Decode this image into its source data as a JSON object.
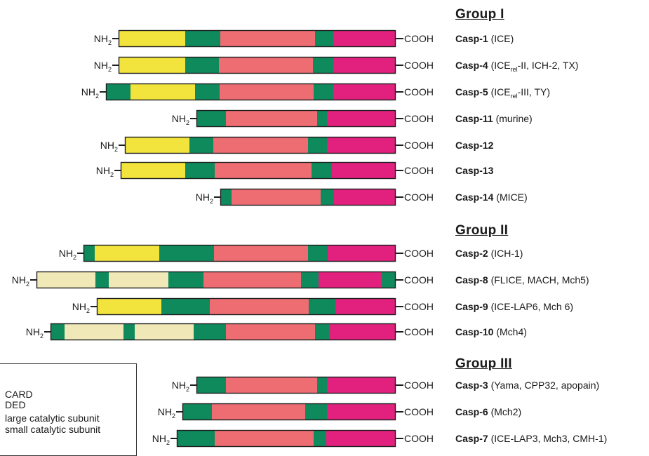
{
  "colors": {
    "card": "#0e8a5c",
    "ded": "#f0e8b6",
    "large": "#ee6d72",
    "small": "#e2207e",
    "prodomain": "#f2e43c"
  },
  "groups": [
    {
      "title": "Group I",
      "rows": [
        {
          "name": "Casp-1",
          "alias": " (ICE)",
          "segments": [
            [
              "prodomain",
              0,
              95
            ],
            [
              "card",
              95,
              145
            ],
            [
              "large",
              145,
              280
            ],
            [
              "card",
              280,
              306
            ],
            [
              "small",
              306,
              395
            ]
          ]
        },
        {
          "name": "Casp-4",
          "alias": " (ICErel-II, ICH-2, TX)",
          "segments": [
            [
              "prodomain",
              0,
              95
            ],
            [
              "card",
              95,
              143
            ],
            [
              "large",
              143,
              277
            ],
            [
              "card",
              277,
              306
            ],
            [
              "small",
              306,
              395
            ]
          ]
        },
        {
          "name": "Casp-5",
          "alias": " (ICErel-III, TY)",
          "segments": [
            [
              "card",
              0,
              35
            ],
            [
              "prodomain",
              35,
              127
            ],
            [
              "card",
              127,
              162
            ],
            [
              "large",
              162,
              296
            ],
            [
              "card",
              296,
              324
            ],
            [
              "small",
              324,
              413
            ]
          ]
        },
        {
          "name": "Casp-11",
          "alias": " (murine)",
          "segments": [
            [
              "card",
              0,
              42
            ],
            [
              "large",
              42,
              172
            ],
            [
              "card",
              172,
              186
            ],
            [
              "small",
              186,
              284
            ]
          ]
        },
        {
          "name": "Casp-12",
          "alias": "",
          "segments": [
            [
              "prodomain",
              0,
              92
            ],
            [
              "card",
              92,
              126
            ],
            [
              "large",
              126,
              261
            ],
            [
              "card",
              261,
              288
            ],
            [
              "small",
              288,
              386
            ]
          ]
        },
        {
          "name": "Casp-13",
          "alias": "",
          "segments": [
            [
              "prodomain",
              0,
              92
            ],
            [
              "card",
              92,
              134
            ],
            [
              "large",
              134,
              272
            ],
            [
              "card",
              272,
              301
            ],
            [
              "small",
              301,
              392
            ]
          ]
        },
        {
          "name": "Casp-14",
          "alias": " (MICE)",
          "segments": [
            [
              "card",
              0,
              16
            ],
            [
              "large",
              16,
              143
            ],
            [
              "card",
              143,
              162
            ],
            [
              "small",
              162,
              250
            ]
          ]
        }
      ]
    },
    {
      "title": "Group II",
      "rows": [
        {
          "name": "Casp-2",
          "alias": " (ICH-1)",
          "segments": [
            [
              "card",
              0,
              16
            ],
            [
              "prodomain",
              16,
              108
            ],
            [
              "card",
              108,
              186
            ],
            [
              "large",
              186,
              320
            ],
            [
              "card",
              320,
              348
            ],
            [
              "small",
              348,
              445
            ]
          ]
        },
        {
          "name": "Casp-8",
          "alias": " (FLICE, MACH, Mch5)",
          "segments": [
            [
              "ded",
              0,
              84
            ],
            [
              "card",
              84,
              103
            ],
            [
              "ded",
              103,
              188
            ],
            [
              "card",
              188,
              238
            ],
            [
              "large",
              238,
              377
            ],
            [
              "card",
              377,
              402
            ],
            [
              "small",
              402,
              492
            ],
            [
              "card",
              492,
              512
            ]
          ]
        },
        {
          "name": "Casp-9",
          "alias": " (ICE-LAP6, Mch 6)",
          "segments": [
            [
              "prodomain",
              0,
              92
            ],
            [
              "card",
              92,
              161
            ],
            [
              "large",
              161,
              302
            ],
            [
              "card",
              302,
              340
            ],
            [
              "small",
              340,
              426
            ]
          ]
        },
        {
          "name": "Casp-10",
          "alias": " (Mch4)",
          "segments": [
            [
              "card",
              0,
              20
            ],
            [
              "ded",
              20,
              104
            ],
            [
              "card",
              104,
              120
            ],
            [
              "ded",
              120,
              204
            ],
            [
              "card",
              204,
              250
            ],
            [
              "large",
              250,
              377
            ],
            [
              "card",
              377,
              398
            ],
            [
              "small",
              398,
              492
            ]
          ]
        }
      ]
    },
    {
      "title": "Group III",
      "rows": [
        {
          "name": "Casp-3",
          "alias": " (Yama, CPP32, apopain)",
          "segments": [
            [
              "card",
              0,
              42
            ],
            [
              "large",
              42,
              172
            ],
            [
              "card",
              172,
              186
            ],
            [
              "small",
              186,
              284
            ]
          ]
        },
        {
          "name": "Casp-6",
          "alias": " (Mch2)",
          "segments": [
            [
              "card",
              0,
              42
            ],
            [
              "large",
              42,
              175
            ],
            [
              "card",
              175,
              206
            ],
            [
              "small",
              206,
              304
            ]
          ]
        },
        {
          "name": "Casp-7",
          "alias": " (ICE-LAP3, Mch3, CMH-1)",
          "segments": [
            [
              "card",
              0,
              54
            ],
            [
              "large",
              54,
              195
            ],
            [
              "card",
              195,
              213
            ],
            [
              "small",
              213,
              312
            ]
          ]
        }
      ]
    }
  ],
  "labels": {
    "nh2": "NH",
    "nh2_sub": "2",
    "cooh": "COOH",
    "rel_sub": "rel"
  },
  "legend": {
    "items": [
      "CARD",
      "DED",
      "large catalytic subunit",
      "small catalytic subunit"
    ]
  }
}
